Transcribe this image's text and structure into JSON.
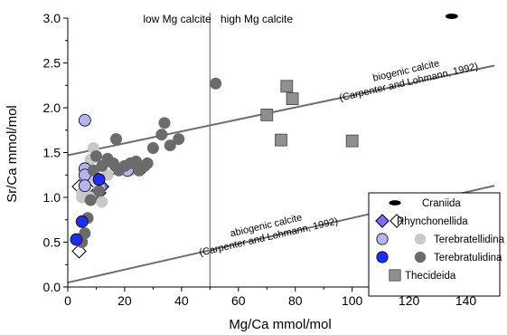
{
  "chart_data": {
    "type": "scatter",
    "xlabel": "Mg/Ca mmol/mol",
    "ylabel": "Sr/Ca mmol/mol",
    "xlim": [
      0,
      150
    ],
    "ylim": [
      0,
      3.0
    ],
    "xticks": [
      0,
      20,
      40,
      60,
      80,
      100,
      120,
      140
    ],
    "yticks": [
      0.0,
      0.5,
      1.0,
      1.5,
      2.0,
      2.5,
      3.0
    ],
    "xtick_labels": [
      "0",
      "20",
      "40",
      "60",
      "80",
      "100",
      "120",
      "140"
    ],
    "ytick_labels": [
      "0.0",
      "0.5",
      "1.0",
      "1.5",
      "2.0",
      "2.5",
      "3.0"
    ],
    "grid": false,
    "vline": {
      "x": 50,
      "color": "#777777"
    },
    "region_labels": {
      "left": "low Mg calcite",
      "right": "high Mg calcite"
    },
    "reference_lines": [
      {
        "name": "biogenic",
        "x": [
          0,
          150
        ],
        "y": [
          1.47,
          2.47
        ],
        "color": "#6e6e6e",
        "label_line1": "biogenic calcite",
        "label_line2": "(Carpenter and Lohmann, 1992)"
      },
      {
        "name": "abiogenic",
        "x": [
          0,
          150
        ],
        "y": [
          0.05,
          1.13
        ],
        "color": "#6e6e6e",
        "label_line1": "abiogenic calcite",
        "label_line2": "(Carpenter and Lohmann, 1992)"
      }
    ],
    "legend_position": "bottom-right",
    "legend": [
      {
        "label": "Craniida",
        "markers": [
          "ellipse-black"
        ]
      },
      {
        "label": "Rhynchonellida",
        "markers": [
          "diamond-blue",
          "diamond-white"
        ]
      },
      {
        "label": "Terebratellidina",
        "markers": [
          "circle-lavender",
          "circle-lightgray"
        ]
      },
      {
        "label": "Terebratulidina",
        "markers": [
          "circle-blue",
          "circle-darkgray"
        ]
      },
      {
        "label": "Thecideida",
        "markers": [
          "square-gray"
        ]
      }
    ],
    "series": [
      {
        "name": "Craniida",
        "marker": "ellipse-black",
        "points": [
          [
            135,
            3.02
          ]
        ]
      },
      {
        "name": "Rhynchonellida",
        "marker": "diamond-white",
        "points": [
          [
            4,
            0.4
          ],
          [
            4,
            1.12
          ],
          [
            6,
            1.03
          ],
          [
            10,
            1.22
          ],
          [
            15,
            1.3
          ],
          [
            17,
            1.34
          ],
          [
            26,
            1.32
          ],
          [
            8,
            1.07
          ]
        ]
      },
      {
        "name": "Rhynchonellida",
        "marker": "diamond-blue",
        "points": [
          [
            9,
            1.02
          ],
          [
            11,
            1.05
          ],
          [
            12,
            1.12
          ]
        ]
      },
      {
        "name": "Terebratellidina",
        "marker": "circle-lightgray",
        "points": [
          [
            5,
            1.05
          ],
          [
            6,
            1.1
          ],
          [
            7,
            1.22
          ],
          [
            7,
            1.33
          ],
          [
            8,
            1.42
          ],
          [
            9,
            1.55
          ],
          [
            10,
            1.2
          ],
          [
            11,
            1.1
          ],
          [
            12,
            0.95
          ],
          [
            14,
            1.25
          ],
          [
            18,
            1.33
          ],
          [
            22,
            1.3
          ],
          [
            8,
            1.0
          ],
          [
            5,
            1.0
          ]
        ]
      },
      {
        "name": "Terebratellidina",
        "marker": "circle-lavender",
        "points": [
          [
            6,
            1.86
          ],
          [
            6,
            1.32
          ],
          [
            6,
            1.25
          ],
          [
            6,
            1.13
          ],
          [
            21,
            1.3
          ]
        ]
      },
      {
        "name": "Terebratulidina",
        "marker": "circle-darkgray",
        "points": [
          [
            5,
            0.5
          ],
          [
            6,
            0.6
          ],
          [
            7,
            0.77
          ],
          [
            8,
            0.97
          ],
          [
            9,
            1.3
          ],
          [
            10,
            1.46
          ],
          [
            11,
            1.07
          ],
          [
            12,
            1.35
          ],
          [
            14,
            1.43
          ],
          [
            16,
            1.38
          ],
          [
            17,
            1.65
          ],
          [
            18,
            1.3
          ],
          [
            20,
            1.35
          ],
          [
            22,
            1.38
          ],
          [
            24,
            1.4
          ],
          [
            25,
            1.3
          ],
          [
            27,
            1.35
          ],
          [
            30,
            1.55
          ],
          [
            33,
            1.7
          ],
          [
            34,
            1.83
          ],
          [
            36,
            1.58
          ],
          [
            39,
            1.65
          ],
          [
            52,
            2.27
          ],
          [
            28,
            1.38
          ]
        ]
      },
      {
        "name": "Terebratulidina",
        "marker": "circle-blue",
        "points": [
          [
            3,
            0.53
          ],
          [
            5,
            0.73
          ],
          [
            11,
            1.2
          ]
        ]
      },
      {
        "name": "Thecideida",
        "marker": "square-gray",
        "points": [
          [
            70,
            1.92
          ],
          [
            75,
            1.64
          ],
          [
            77,
            2.24
          ],
          [
            79,
            2.1
          ],
          [
            100,
            1.63
          ]
        ]
      }
    ],
    "colors": {
      "axis": "#000000",
      "ref_line": "#6e6e6e",
      "vline": "#777777",
      "craniida": "#000000",
      "diamond_blue": "#7272f0",
      "circle_lavender": "#b4b4ee",
      "circle_lightgray": "#c8c8c8",
      "circle_blue": "#1f2df0",
      "circle_darkgray": "#6b6b6b",
      "square_gray": "#8f8f8f"
    }
  }
}
